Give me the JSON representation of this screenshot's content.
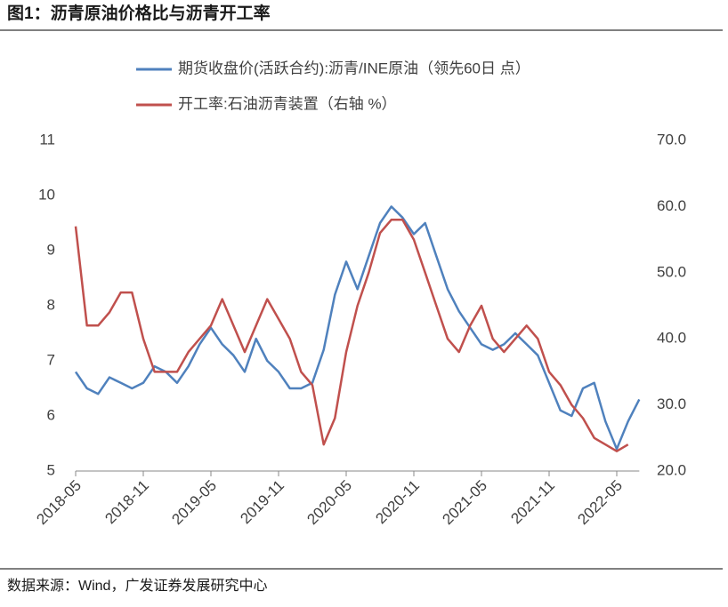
{
  "chart_data": {
    "type": "line",
    "title": "图1：沥青原油价格比与沥青开工率",
    "source": "数据来源：Wind，广发证券发展研究中心",
    "categories": [
      "2018-05",
      null,
      null,
      null,
      null,
      null,
      "2018-11",
      null,
      null,
      null,
      null,
      null,
      "2019-05",
      null,
      null,
      null,
      null,
      null,
      "2019-11",
      null,
      null,
      null,
      null,
      null,
      "2020-05",
      null,
      null,
      null,
      null,
      null,
      "2020-11",
      null,
      null,
      null,
      null,
      null,
      "2021-05",
      null,
      null,
      null,
      null,
      null,
      "2021-11",
      null,
      null,
      null,
      null,
      null,
      "2022-05",
      null,
      null
    ],
    "series": [
      {
        "name": "期货收盘价(活跃合约):沥青/INE原油（领先60日 点）",
        "color": "#4f81bd",
        "axis": "y",
        "values": [
          6.8,
          6.5,
          6.4,
          6.7,
          6.6,
          6.5,
          6.6,
          6.9,
          6.8,
          6.6,
          6.9,
          7.3,
          7.6,
          7.3,
          7.1,
          6.8,
          7.4,
          7.0,
          6.8,
          6.5,
          6.5,
          6.6,
          7.2,
          8.2,
          8.8,
          8.3,
          8.9,
          9.5,
          9.8,
          9.6,
          9.3,
          9.5,
          8.9,
          8.3,
          7.9,
          7.6,
          7.3,
          7.2,
          7.3,
          7.5,
          7.3,
          7.1,
          6.6,
          6.1,
          6.0,
          6.5,
          6.6,
          5.9,
          5.4,
          5.9,
          6.3
        ]
      },
      {
        "name": "开工率:石油沥青装置（右轴 %）",
        "color": "#c0504d",
        "axis": "y2",
        "values": [
          57,
          42,
          42,
          44,
          47,
          47,
          40,
          35,
          35,
          35,
          38,
          40,
          42,
          46,
          42,
          38,
          42,
          46,
          43,
          40,
          35,
          33,
          24,
          28,
          38,
          45,
          50,
          56,
          58,
          58,
          55,
          50,
          45,
          40,
          38,
          42,
          45,
          40,
          38,
          40,
          42,
          40,
          35,
          33,
          30,
          28,
          25,
          24,
          23,
          24,
          null
        ]
      }
    ],
    "ylim": [
      5,
      11
    ],
    "yticks": [
      5,
      6,
      7,
      8,
      9,
      10,
      11
    ],
    "y2lim": [
      20,
      70
    ],
    "y2ticks": [
      {
        "value": 20,
        "label": "20.0"
      },
      {
        "value": 30,
        "label": "30.0"
      },
      {
        "value": 40,
        "label": "40.0"
      },
      {
        "value": 50,
        "label": "50.0"
      },
      {
        "value": 60,
        "label": "60.0"
      },
      {
        "value": 70,
        "label": "70.0"
      }
    ]
  }
}
